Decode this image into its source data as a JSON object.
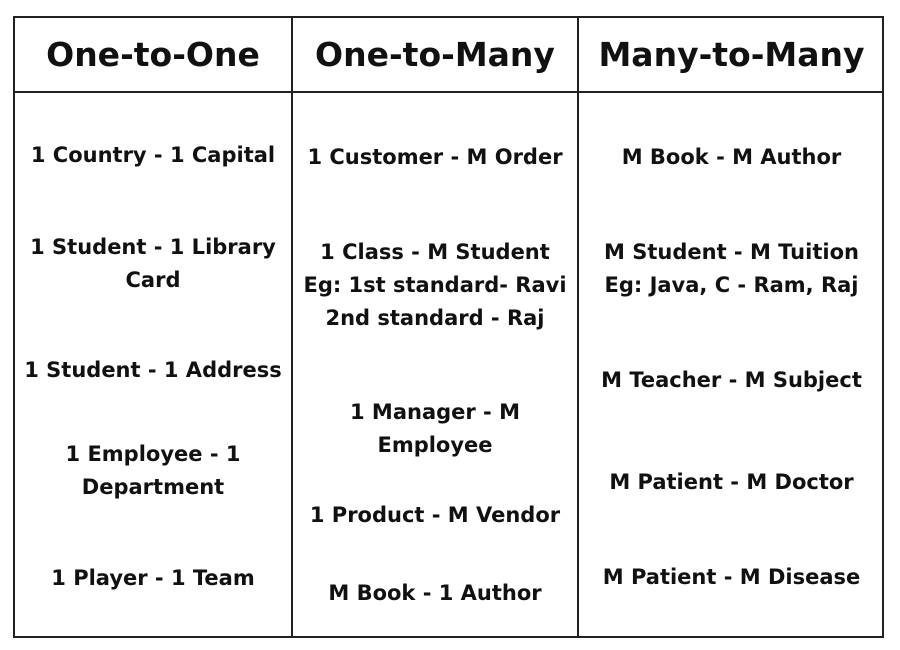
{
  "headers": [
    "One-to-One",
    "One-to-Many",
    "Many-to-Many"
  ],
  "columns": [
    [
      "1 Country - 1 Capital",
      "1 Student - 1 Library\nCard",
      "1 Student - 1 Address",
      "1 Employee - 1\nDepartment",
      "1 Player - 1 Team"
    ],
    [
      "1 Customer - M Order",
      "1 Class - M Student\nEg: 1st standard- Ravi\n2nd standard - Raj",
      "1 Manager - M\nEmployee",
      "1 Product - M Vendor",
      "M Book - 1 Author"
    ],
    [
      "M Book - M Author",
      "M Student - M Tuition\nEg: Java, C - Ram, Raj",
      "M Teacher - M Subject",
      "M Patient - M Doctor",
      "M Patient - M Disease"
    ]
  ],
  "colors": {
    "border": "#222222",
    "text": "#111111",
    "background": "#ffffff"
  }
}
